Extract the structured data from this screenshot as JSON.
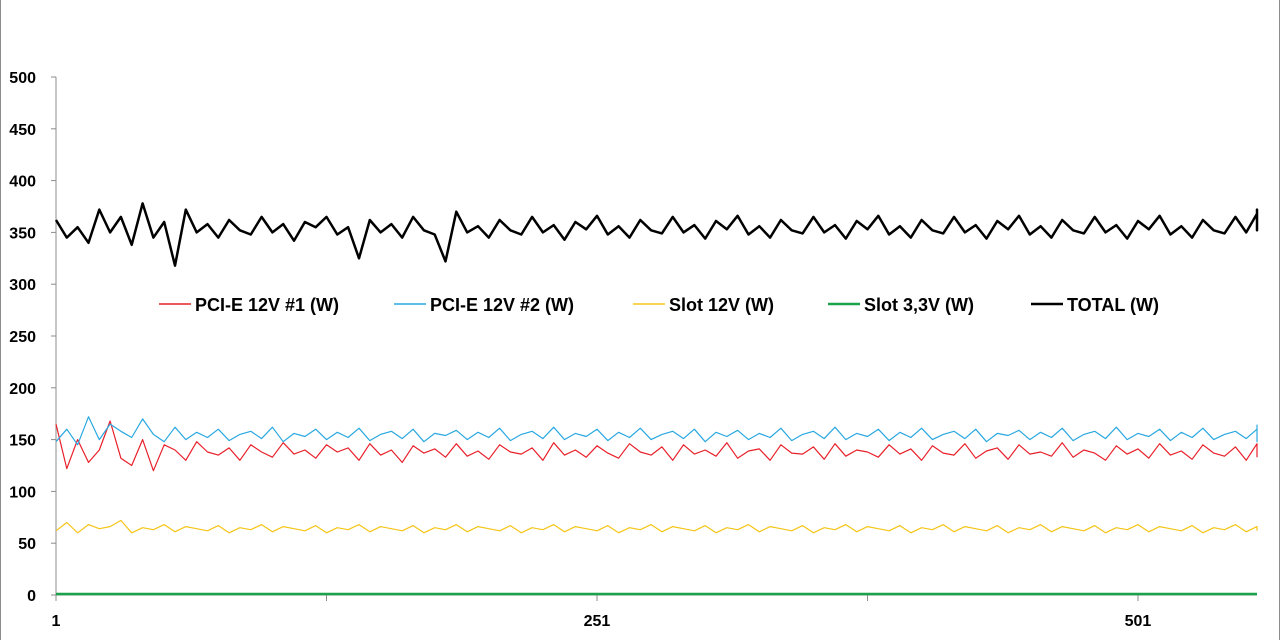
{
  "chart_data": {
    "type": "line",
    "title": "",
    "xlabel": "",
    "ylabel": "",
    "ylim": [
      0,
      500
    ],
    "yticks": [
      0,
      50,
      100,
      150,
      200,
      250,
      300,
      350,
      400,
      450,
      500
    ],
    "xlim": [
      1,
      556
    ],
    "xtick_labels": [
      {
        "value": 1,
        "label": "1"
      },
      {
        "value": 251,
        "label": "251"
      },
      {
        "value": 501,
        "label": "501"
      }
    ],
    "grid": false,
    "legend_position": "center",
    "x_start": 1,
    "x_step": 5,
    "series": [
      {
        "name": "PCI-E 12V #1 (W)",
        "color": "#e8202a",
        "values": [
          165,
          122,
          150,
          128,
          140,
          168,
          132,
          125,
          150,
          120,
          145,
          140,
          130,
          148,
          138,
          135,
          142,
          130,
          145,
          138,
          133,
          147,
          136,
          140,
          132,
          145,
          138,
          142,
          130,
          146,
          135,
          140,
          128,
          144,
          137,
          141,
          133,
          146,
          134,
          139,
          131,
          145,
          138,
          136,
          142,
          130,
          147,
          135,
          140,
          133,
          144,
          137,
          132,
          146,
          138,
          135,
          143,
          130,
          145,
          136,
          140,
          134,
          147,
          132,
          139,
          141,
          130,
          145,
          137,
          136,
          143,
          131,
          146,
          134,
          140,
          138,
          133,
          145,
          136,
          141,
          130,
          144,
          137,
          135,
          146,
          132,
          139,
          142,
          131,
          145,
          136,
          138,
          134,
          147,
          133,
          140,
          137,
          130,
          144,
          136,
          141,
          132,
          146,
          135,
          139,
          131,
          145,
          137,
          134,
          143,
          130,
          146,
          136,
          140,
          133
        ]
      },
      {
        "name": "PCI-E 12V #2 (W)",
        "color": "#2aa8e0",
        "values": [
          148,
          160,
          145,
          172,
          150,
          165,
          158,
          152,
          170,
          155,
          148,
          162,
          150,
          157,
          152,
          160,
          149,
          155,
          158,
          151,
          162,
          148,
          156,
          153,
          160,
          150,
          157,
          152,
          161,
          149,
          155,
          158,
          151,
          160,
          148,
          156,
          154,
          159,
          150,
          157,
          152,
          161,
          149,
          155,
          158,
          151,
          162,
          150,
          156,
          153,
          160,
          149,
          157,
          152,
          161,
          150,
          155,
          158,
          151,
          160,
          148,
          157,
          153,
          159,
          150,
          156,
          152,
          161,
          149,
          155,
          158,
          151,
          162,
          150,
          156,
          153,
          160,
          149,
          157,
          152,
          161,
          150,
          155,
          158,
          151,
          160,
          148,
          156,
          154,
          159,
          150,
          157,
          152,
          161,
          149,
          155,
          158,
          151,
          162,
          150,
          156,
          153,
          160,
          149,
          157,
          152,
          161,
          150,
          155,
          158,
          151,
          160,
          148,
          164,
          163
        ]
      },
      {
        "name": "Slot 12V (W)",
        "color": "#f5c518",
        "values": [
          62,
          70,
          60,
          68,
          64,
          66,
          72,
          60,
          65,
          63,
          68,
          61,
          66,
          64,
          62,
          67,
          60,
          65,
          63,
          68,
          61,
          66,
          64,
          62,
          67,
          60,
          65,
          63,
          68,
          61,
          66,
          64,
          62,
          67,
          60,
          65,
          63,
          68,
          61,
          66,
          64,
          62,
          67,
          60,
          65,
          63,
          68,
          61,
          66,
          64,
          62,
          67,
          60,
          65,
          63,
          68,
          61,
          66,
          64,
          62,
          67,
          60,
          65,
          63,
          68,
          61,
          66,
          64,
          62,
          67,
          60,
          65,
          63,
          68,
          61,
          66,
          64,
          62,
          67,
          60,
          65,
          63,
          68,
          61,
          66,
          64,
          62,
          67,
          60,
          65,
          63,
          68,
          61,
          66,
          64,
          62,
          67,
          60,
          65,
          63,
          68,
          61,
          66,
          64,
          62,
          67,
          60,
          65,
          63,
          68,
          61,
          66,
          64,
          66,
          62
        ]
      },
      {
        "name": "Slot 3,3V (W)",
        "color": "#1aa34a",
        "values": [
          1,
          1,
          1,
          1,
          1,
          1,
          1,
          1,
          1,
          1,
          1,
          1,
          1,
          1,
          1,
          1,
          1,
          1,
          1,
          1,
          1,
          1,
          1,
          1,
          1,
          1,
          1,
          1,
          1,
          1,
          1,
          1,
          1,
          1,
          1,
          1,
          1,
          1,
          1,
          1,
          1,
          1,
          1,
          1,
          1,
          1,
          1,
          1,
          1,
          1,
          1,
          1,
          1,
          1,
          1,
          1,
          1,
          1,
          1,
          1,
          1,
          1,
          1,
          1,
          1,
          1,
          1,
          1,
          1,
          1,
          1,
          1,
          1,
          1,
          1,
          1,
          1,
          1,
          1,
          1,
          1,
          1,
          1,
          1,
          1,
          1,
          1,
          1,
          1,
          1,
          1,
          1,
          1,
          1,
          1,
          1,
          1,
          1,
          1,
          1,
          1,
          1,
          1,
          1,
          1,
          1,
          1,
          1,
          1,
          1,
          1,
          1,
          1,
          1,
          1
        ]
      },
      {
        "name": "TOTAL (W)",
        "color": "#000000",
        "values": [
          362,
          345,
          355,
          340,
          372,
          350,
          365,
          338,
          378,
          345,
          360,
          318,
          372,
          350,
          358,
          345,
          362,
          352,
          348,
          365,
          350,
          358,
          342,
          360,
          355,
          365,
          348,
          355,
          325,
          362,
          350,
          358,
          345,
          365,
          352,
          348,
          322,
          370,
          350,
          356,
          345,
          362,
          352,
          348,
          365,
          350,
          357,
          343,
          360,
          353,
          366,
          348,
          356,
          345,
          362,
          352,
          349,
          365,
          350,
          357,
          344,
          361,
          353,
          366,
          348,
          356,
          345,
          362,
          352,
          349,
          365,
          350,
          357,
          344,
          361,
          353,
          366,
          348,
          356,
          345,
          362,
          352,
          349,
          365,
          350,
          357,
          344,
          361,
          353,
          366,
          348,
          356,
          345,
          362,
          352,
          349,
          365,
          350,
          357,
          344,
          361,
          353,
          366,
          348,
          356,
          345,
          362,
          352,
          349,
          365,
          350,
          368,
          352,
          372,
          358
        ]
      }
    ]
  }
}
